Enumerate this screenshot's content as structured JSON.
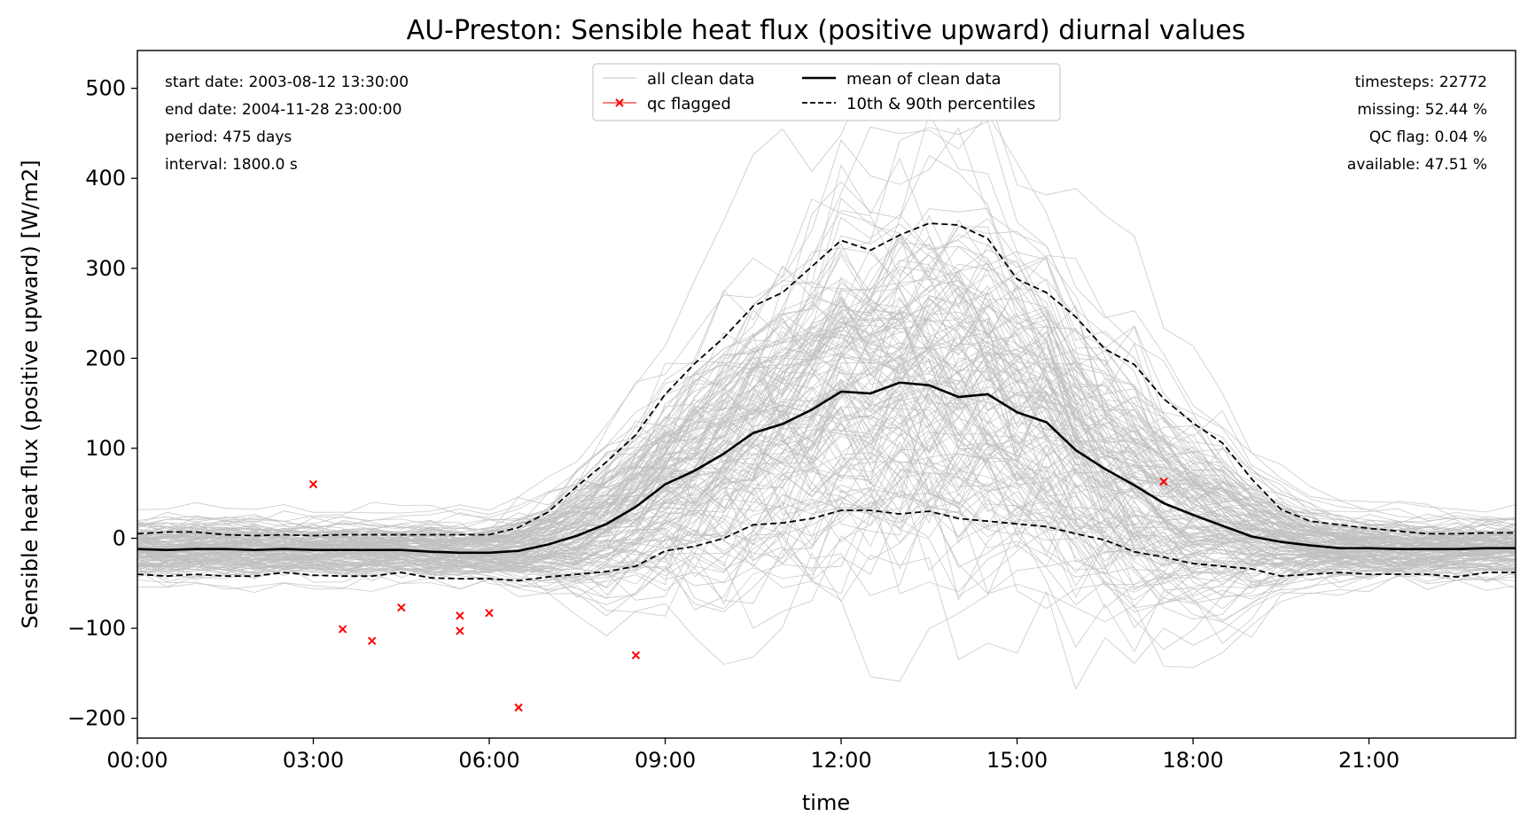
{
  "chart_data": {
    "type": "line",
    "title": "AU-Preston: Sensible heat flux (positive upward) diurnal values",
    "xlabel": "time",
    "ylabel": "Sensible heat flux (positive upward) [W/m2]",
    "xlim": [
      0,
      23.5
    ],
    "ylim": [
      -222,
      542
    ],
    "x_ticks": [
      0,
      3,
      6,
      9,
      12,
      15,
      18,
      21
    ],
    "x_tick_labels": [
      "00:00",
      "03:00",
      "06:00",
      "09:00",
      "12:00",
      "15:00",
      "18:00",
      "21:00"
    ],
    "y_ticks": [
      -200,
      -100,
      0,
      100,
      200,
      300,
      400,
      500
    ],
    "y_tick_labels": [
      "−200",
      "−100",
      "0",
      "100",
      "200",
      "300",
      "400",
      "500"
    ],
    "grid": false,
    "legend_position": "top-center",
    "x": [
      0,
      0.5,
      1,
      1.5,
      2,
      2.5,
      3,
      3.5,
      4,
      4.5,
      5,
      5.5,
      6,
      6.5,
      7,
      7.5,
      8,
      8.5,
      9,
      9.5,
      10,
      10.5,
      11,
      11.5,
      12,
      12.5,
      13,
      13.5,
      14,
      14.5,
      15,
      15.5,
      16,
      16.5,
      17,
      17.5,
      18,
      18.5,
      19,
      19.5,
      20,
      20.5,
      21,
      21.5,
      22,
      22.5,
      23,
      23.5
    ],
    "series": [
      {
        "name": "mean of clean data",
        "color": "#000000",
        "style": "solid",
        "values": [
          -12,
          -13,
          -12,
          -12,
          -13,
          -12,
          -13,
          -13,
          -13,
          -13,
          -15,
          -16,
          -16,
          -14,
          -7,
          3,
          16,
          35,
          60,
          75,
          94,
          117,
          127,
          143,
          163,
          161,
          173,
          170,
          157,
          160,
          140,
          129,
          98,
          77,
          59,
          39,
          26,
          14,
          2,
          -4,
          -8,
          -11,
          -11,
          -12,
          -12,
          -12,
          -11,
          -11
        ]
      },
      {
        "name": "10th & 90th percentiles",
        "color": "#000000",
        "style": "dashed",
        "values": [
          5,
          7,
          7,
          4,
          3,
          4,
          3,
          4,
          4,
          4,
          4,
          4,
          4,
          12,
          29,
          58,
          85,
          115,
          160,
          194,
          223,
          258,
          273,
          302,
          331,
          320,
          337,
          350,
          348,
          333,
          288,
          273,
          246,
          210,
          193,
          155,
          128,
          106,
          66,
          32,
          19,
          15,
          11,
          8,
          5,
          5,
          6,
          6
        ]
      },
      {
        "name": "10th percentile",
        "color": "#000000",
        "style": "dashed",
        "values": [
          -40,
          -42,
          -40,
          -42,
          -42,
          -38,
          -41,
          -42,
          -42,
          -38,
          -44,
          -45,
          -45,
          -47,
          -43,
          -40,
          -37,
          -31,
          -14,
          -9,
          0,
          15,
          17,
          22,
          31,
          31,
          27,
          30,
          22,
          19,
          16,
          13,
          5,
          -2,
          -15,
          -21,
          -28,
          -31,
          -34,
          -42,
          -40,
          -38,
          -40,
          -40,
          -40,
          -43,
          -38,
          -38
        ]
      }
    ],
    "qc_flagged": {
      "name": "qc flagged",
      "color": "#ff0000",
      "points": [
        {
          "x": 3.0,
          "y": 60
        },
        {
          "x": 3.5,
          "y": -101
        },
        {
          "x": 4.0,
          "y": -114
        },
        {
          "x": 4.5,
          "y": -77
        },
        {
          "x": 5.5,
          "y": -86
        },
        {
          "x": 5.5,
          "y": -103
        },
        {
          "x": 6.0,
          "y": -83
        },
        {
          "x": 6.5,
          "y": -188
        },
        {
          "x": 8.5,
          "y": -130
        },
        {
          "x": 17.5,
          "y": 63
        }
      ]
    },
    "clean_data": {
      "name": "all clean data",
      "color": "#c0c0c0",
      "note_count": 160
    }
  },
  "info_left": [
    "start date: 2003-08-12 13:30:00",
    "end date: 2004-11-28 23:00:00",
    "period: 475 days",
    "interval: 1800.0 s"
  ],
  "info_right": [
    "timesteps: 22772",
    "missing: 52.44 %",
    "QC flag: 0.04 %",
    "available: 47.51 %"
  ],
  "legend": {
    "all_clean": "all clean data",
    "qc_flagged": "qc flagged",
    "mean": "mean of clean data",
    "percentiles": "10th & 90th percentiles"
  }
}
